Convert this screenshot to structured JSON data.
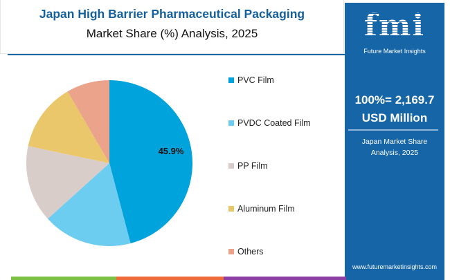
{
  "chart_data": {
    "type": "pie",
    "title": "Japan High Barrier Pharmaceutical Packaging",
    "subtitle": "Market Share (%) Analysis, 2025",
    "categories": [
      "PVC Film",
      "PVDC Coated Film",
      "PP Film",
      "Aluminum Film",
      "Others"
    ],
    "values": [
      45.9,
      17.4,
      15.0,
      13.3,
      8.4
    ],
    "colors": [
      "#00a3dc",
      "#6dcdf1",
      "#d8cdc8",
      "#ebc76b",
      "#eba38b"
    ],
    "data_labels": [
      {
        "category": "PVC Film",
        "text": "45.9%"
      }
    ],
    "legend_position": "right"
  },
  "panel": {
    "logo_text": "fmi",
    "logo_sub": "Future Market Insights",
    "total_line1": "100%= 2,169.7",
    "total_line2": "USD Million",
    "sub_line1": "Japan Market Share",
    "sub_line2": "Analysis, 2025",
    "url": "www.futuremarketinsights.com"
  }
}
